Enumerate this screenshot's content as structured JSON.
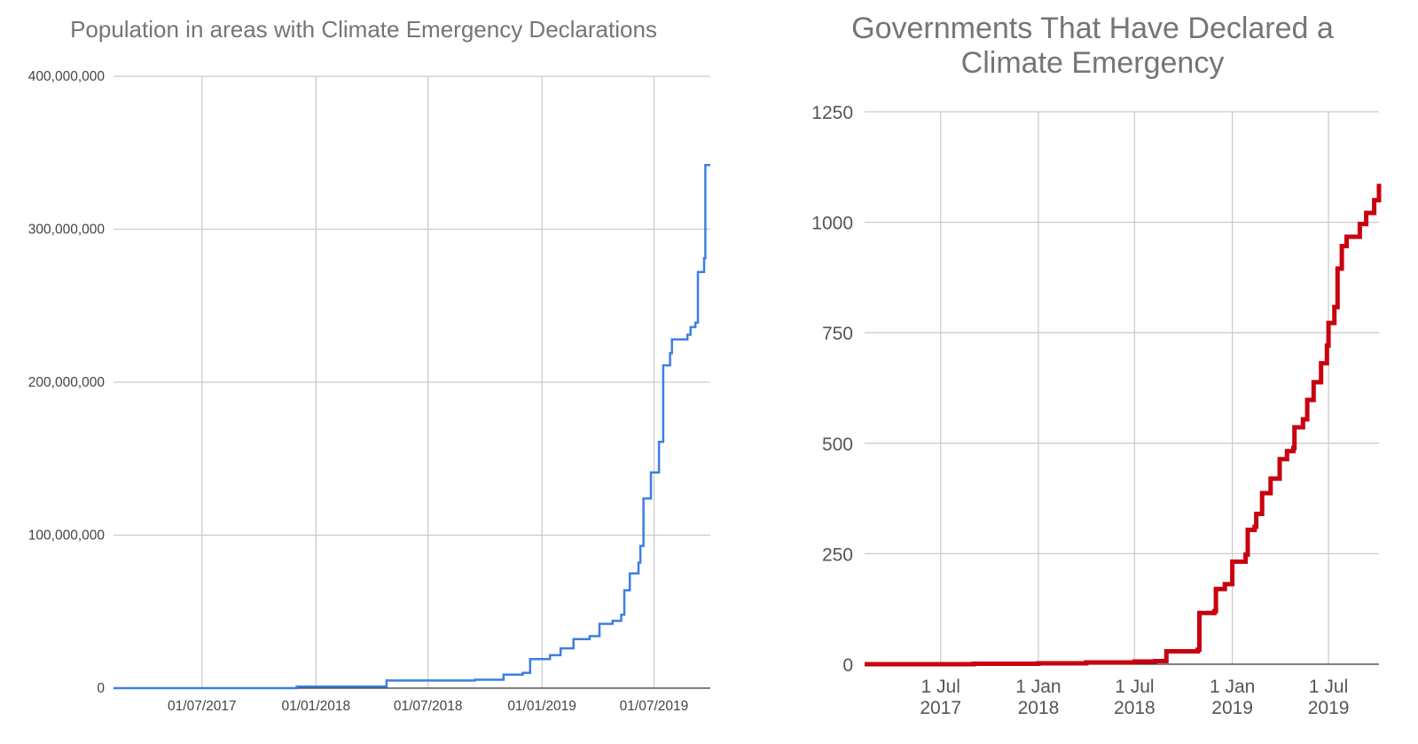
{
  "chart_data": [
    {
      "type": "line",
      "title": "Population in areas with Climate Emergency Declarations",
      "xlabel": "",
      "ylabel": "",
      "interpolation": "step",
      "color": "#3c7fe3",
      "grid": true,
      "legend": "none",
      "xlim": [
        "2017-02-08",
        "2019-09-30"
      ],
      "ylim": [
        0,
        400000000
      ],
      "x_ticks": [
        "2017-07-01",
        "2018-01-01",
        "2018-07-01",
        "2019-01-01",
        "2019-07-01"
      ],
      "x_tick_labels": [
        "01/07/2017",
        "01/01/2018",
        "01/07/2018",
        "01/01/2019",
        "01/07/2019"
      ],
      "y_ticks": [
        0,
        100000000,
        200000000,
        300000000,
        400000000
      ],
      "y_tick_labels": [
        "0",
        "100,000,000",
        "200,000,000",
        "300,000,000",
        "400,000,000"
      ],
      "points": [
        [
          "2017-02-08",
          0
        ],
        [
          "2017-11-01",
          0
        ],
        [
          "2017-12-01",
          1000000
        ],
        [
          "2018-04-25",
          5000000
        ],
        [
          "2018-09-15",
          5500000
        ],
        [
          "2018-10-31",
          8800000
        ],
        [
          "2018-12-01",
          10000000
        ],
        [
          "2018-12-13",
          19000000
        ],
        [
          "2019-01-14",
          21500000
        ],
        [
          "2019-01-31",
          26000000
        ],
        [
          "2019-02-21",
          32000000
        ],
        [
          "2019-03-19",
          34000000
        ],
        [
          "2019-04-04",
          42000000
        ],
        [
          "2019-04-25",
          44000000
        ],
        [
          "2019-05-09",
          48000000
        ],
        [
          "2019-05-14",
          64000000
        ],
        [
          "2019-05-23",
          75000000
        ],
        [
          "2019-06-06",
          82000000
        ],
        [
          "2019-06-09",
          93000000
        ],
        [
          "2019-06-14",
          124000000
        ],
        [
          "2019-06-26",
          141000000
        ],
        [
          "2019-07-09",
          161000000
        ],
        [
          "2019-07-16",
          211000000
        ],
        [
          "2019-07-27",
          219000000
        ],
        [
          "2019-07-30",
          228000000
        ],
        [
          "2019-08-24",
          231000000
        ],
        [
          "2019-08-29",
          236000000
        ],
        [
          "2019-09-06",
          239000000
        ],
        [
          "2019-09-10",
          272000000
        ],
        [
          "2019-09-20",
          281000000
        ],
        [
          "2019-09-22",
          342000000
        ],
        [
          "2019-09-30",
          342000000
        ]
      ]
    },
    {
      "type": "line",
      "title": "Governments That Have Declared a Climate Emergency",
      "title_lines": [
        "Governments That Have Declared a",
        "Climate Emergency"
      ],
      "xlabel": "",
      "ylabel": "",
      "interpolation": "step",
      "color": "#c8000f",
      "grid": true,
      "legend": "none",
      "xlim": [
        "2017-02-08",
        "2019-10-04"
      ],
      "ylim": [
        0,
        1250
      ],
      "x_ticks": [
        "2017-07-01",
        "2018-01-01",
        "2018-07-01",
        "2019-01-01",
        "2019-07-01"
      ],
      "x_tick_labels": [
        [
          "1 Jul",
          "2017"
        ],
        [
          "1 Jan",
          "2018"
        ],
        [
          "1 Jul",
          "2018"
        ],
        [
          "1 Jan",
          "2019"
        ],
        [
          "1 Jul",
          "2019"
        ]
      ],
      "y_ticks": [
        0,
        250,
        500,
        750,
        1000,
        1250
      ],
      "y_tick_labels": [
        "0",
        "250",
        "500",
        "750",
        "1000",
        "1250"
      ],
      "points": [
        [
          "2017-02-08",
          0
        ],
        [
          "2017-09-01",
          1
        ],
        [
          "2018-01-01",
          2
        ],
        [
          "2018-04-01",
          4
        ],
        [
          "2018-07-01",
          6
        ],
        [
          "2018-08-09",
          7
        ],
        [
          "2018-08-30",
          29
        ],
        [
          "2018-10-28",
          33
        ],
        [
          "2018-10-31",
          116
        ],
        [
          "2018-11-28",
          120
        ],
        [
          "2018-12-01",
          170
        ],
        [
          "2018-12-18",
          181
        ],
        [
          "2019-01-01",
          232
        ],
        [
          "2019-01-26",
          248
        ],
        [
          "2019-01-30",
          304
        ],
        [
          "2019-02-12",
          311
        ],
        [
          "2019-02-15",
          340
        ],
        [
          "2019-02-26",
          387
        ],
        [
          "2019-03-14",
          420
        ],
        [
          "2019-03-31",
          464
        ],
        [
          "2019-04-14",
          482
        ],
        [
          "2019-04-26",
          489
        ],
        [
          "2019-04-28",
          536
        ],
        [
          "2019-05-14",
          554
        ],
        [
          "2019-05-22",
          598
        ],
        [
          "2019-06-03",
          638
        ],
        [
          "2019-06-17",
          681
        ],
        [
          "2019-06-28",
          721
        ],
        [
          "2019-07-01",
          772
        ],
        [
          "2019-07-12",
          808
        ],
        [
          "2019-07-18",
          895
        ],
        [
          "2019-07-26",
          946
        ],
        [
          "2019-08-04",
          967
        ],
        [
          "2019-08-29",
          996
        ],
        [
          "2019-09-10",
          1021
        ],
        [
          "2019-09-25",
          1050
        ],
        [
          "2019-10-04",
          1087
        ]
      ]
    }
  ]
}
